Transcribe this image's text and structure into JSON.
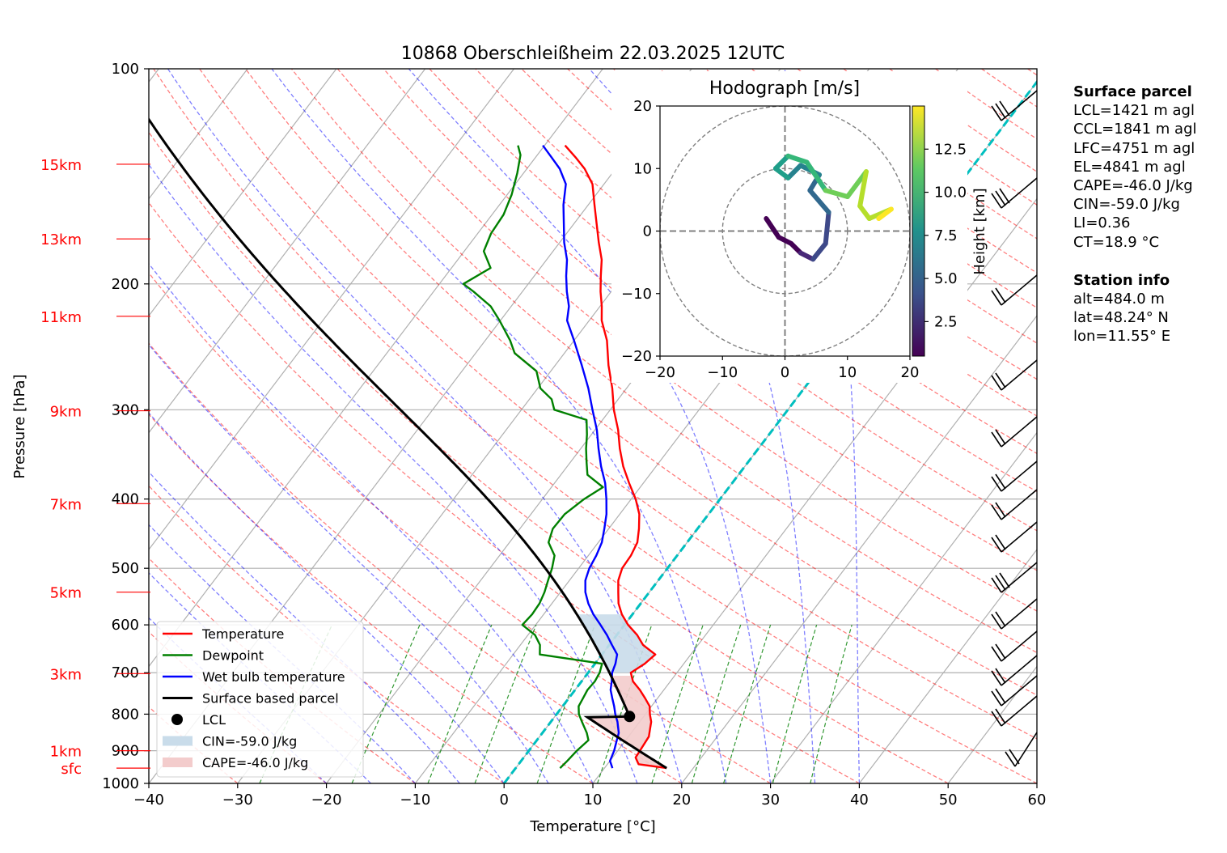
{
  "chart_data": {
    "type": "line",
    "subtype": "skew-T log-p diagram",
    "title": "10868 Oberschleißheim 22.03.2025 12UTC",
    "xlabel": "Temperature [°C]",
    "ylabel": "Pressure [hPa]",
    "xlim": [
      -40,
      60
    ],
    "ylim": [
      1000,
      100
    ],
    "y_scale": "log",
    "x_ticks": [
      -40,
      -30,
      -20,
      -10,
      0,
      10,
      20,
      30,
      40,
      50,
      60
    ],
    "y_ticks": [
      100,
      200,
      300,
      400,
      500,
      600,
      700,
      800,
      900,
      1000
    ],
    "height_labels": [
      {
        "label": "15km",
        "p": 136
      },
      {
        "label": "13km",
        "p": 173
      },
      {
        "label": "11km",
        "p": 222
      },
      {
        "label": "9km",
        "p": 301
      },
      {
        "label": "7km",
        "p": 406
      },
      {
        "label": "5km",
        "p": 540
      },
      {
        "label": "3km",
        "p": 702
      },
      {
        "label": "1km",
        "p": 900
      },
      {
        "label": "sfc",
        "p": 952
      }
    ],
    "grid": true,
    "legend_position": "lower-left",
    "legend": [
      {
        "label": "Temperature",
        "color": "#ff0000",
        "kind": "line"
      },
      {
        "label": "Dewpoint",
        "color": "#008000",
        "kind": "line"
      },
      {
        "label": "Wet bulb temperature",
        "color": "#0000ff",
        "kind": "line"
      },
      {
        "label": "Surface based parcel",
        "color": "#000000",
        "kind": "line"
      },
      {
        "label": "LCL",
        "color": "#000000",
        "kind": "dot"
      },
      {
        "label": "CIN=-59.0 J/kg",
        "color": "#c9dcea",
        "kind": "patch"
      },
      {
        "label": "CAPE=-46.0 J/kg",
        "color": "#f3cccc",
        "kind": "patch"
      }
    ],
    "series": [
      {
        "name": "Temperature",
        "color": "#ff0000",
        "points": [
          [
            952,
            17.0
          ],
          [
            940,
            13.5
          ],
          [
            920,
            12.6
          ],
          [
            900,
            12.5
          ],
          [
            860,
            12.3
          ],
          [
            820,
            11.3
          ],
          [
            800,
            10.5
          ],
          [
            780,
            9.8
          ],
          [
            760,
            8.6
          ],
          [
            740,
            7.3
          ],
          [
            720,
            5.8
          ],
          [
            700,
            4.8
          ],
          [
            680,
            5.6
          ],
          [
            660,
            6.0
          ],
          [
            640,
            3.8
          ],
          [
            620,
            2.3
          ],
          [
            600,
            0.4
          ],
          [
            580,
            -1.2
          ],
          [
            560,
            -2.5
          ],
          [
            540,
            -3.5
          ],
          [
            520,
            -4.5
          ],
          [
            500,
            -5.1
          ],
          [
            480,
            -5.2
          ],
          [
            460,
            -5.6
          ],
          [
            440,
            -6.6
          ],
          [
            420,
            -7.8
          ],
          [
            400,
            -9.5
          ],
          [
            380,
            -11.6
          ],
          [
            360,
            -13.7
          ],
          [
            340,
            -15.6
          ],
          [
            320,
            -17.4
          ],
          [
            300,
            -19.6
          ],
          [
            280,
            -21.6
          ],
          [
            260,
            -24.0
          ],
          [
            240,
            -26.3
          ],
          [
            225,
            -28.6
          ],
          [
            215,
            -29.8
          ],
          [
            205,
            -31.2
          ],
          [
            195,
            -32.5
          ],
          [
            185,
            -33.8
          ],
          [
            175,
            -35.6
          ],
          [
            165,
            -37.4
          ],
          [
            155,
            -39.3
          ],
          [
            145,
            -41.3
          ],
          [
            138,
            -43.5
          ],
          [
            133,
            -45.5
          ],
          [
            128,
            -47.7
          ]
        ]
      },
      {
        "name": "Dewpoint",
        "color": "#008000",
        "points": [
          [
            952,
            5.0
          ],
          [
            930,
            5.2
          ],
          [
            900,
            5.4
          ],
          [
            870,
            5.8
          ],
          [
            850,
            5.0
          ],
          [
            820,
            3.5
          ],
          [
            800,
            2.5
          ],
          [
            780,
            1.8
          ],
          [
            760,
            1.6
          ],
          [
            740,
            1.4
          ],
          [
            720,
            1.5
          ],
          [
            700,
            1.3
          ],
          [
            680,
            0.8
          ],
          [
            660,
            -7.0
          ],
          [
            640,
            -7.8
          ],
          [
            620,
            -9.2
          ],
          [
            600,
            -11.5
          ],
          [
            580,
            -11.3
          ],
          [
            560,
            -11.4
          ],
          [
            540,
            -11.8
          ],
          [
            520,
            -12.4
          ],
          [
            500,
            -13.0
          ],
          [
            480,
            -13.8
          ],
          [
            460,
            -15.6
          ],
          [
            440,
            -16.3
          ],
          [
            420,
            -16.2
          ],
          [
            400,
            -15.3
          ],
          [
            385,
            -14.2
          ],
          [
            370,
            -17.0
          ],
          [
            355,
            -18.2
          ],
          [
            340,
            -19.4
          ],
          [
            325,
            -20.5
          ],
          [
            310,
            -21.8
          ],
          [
            300,
            -26.3
          ],
          [
            290,
            -27.5
          ],
          [
            280,
            -29.7
          ],
          [
            265,
            -31.6
          ],
          [
            250,
            -35.6
          ],
          [
            240,
            -37.2
          ],
          [
            225,
            -40.1
          ],
          [
            215,
            -42.3
          ],
          [
            205,
            -45.5
          ],
          [
            200,
            -47.3
          ],
          [
            190,
            -45.6
          ],
          [
            180,
            -47.8
          ],
          [
            170,
            -48.5
          ],
          [
            160,
            -48.7
          ],
          [
            150,
            -49.5
          ],
          [
            140,
            -50.7
          ],
          [
            132,
            -51.9
          ],
          [
            128,
            -53.0
          ]
        ]
      },
      {
        "name": "Wet bulb temperature",
        "color": "#0000ff",
        "points": [
          [
            952,
            10.9
          ],
          [
            930,
            10.0
          ],
          [
            900,
            9.6
          ],
          [
            870,
            9.0
          ],
          [
            850,
            8.6
          ],
          [
            820,
            7.5
          ],
          [
            800,
            6.6
          ],
          [
            780,
            5.8
          ],
          [
            760,
            4.9
          ],
          [
            740,
            4.0
          ],
          [
            720,
            3.4
          ],
          [
            700,
            2.7
          ],
          [
            680,
            2.3
          ],
          [
            660,
            1.7
          ],
          [
            640,
            0.3
          ],
          [
            620,
            -1.1
          ],
          [
            600,
            -2.7
          ],
          [
            580,
            -4.4
          ],
          [
            560,
            -5.9
          ],
          [
            540,
            -7.2
          ],
          [
            520,
            -8.2
          ],
          [
            500,
            -8.8
          ],
          [
            480,
            -9.1
          ],
          [
            460,
            -9.6
          ],
          [
            440,
            -10.5
          ],
          [
            420,
            -11.5
          ],
          [
            400,
            -12.8
          ],
          [
            380,
            -14.3
          ],
          [
            360,
            -16.2
          ],
          [
            340,
            -18.0
          ],
          [
            320,
            -19.8
          ],
          [
            300,
            -22.0
          ],
          [
            280,
            -24.3
          ],
          [
            260,
            -27.0
          ],
          [
            240,
            -30.0
          ],
          [
            225,
            -32.5
          ],
          [
            215,
            -33.5
          ],
          [
            205,
            -35.0
          ],
          [
            195,
            -36.4
          ],
          [
            185,
            -37.7
          ],
          [
            175,
            -39.5
          ],
          [
            165,
            -41.1
          ],
          [
            155,
            -42.8
          ],
          [
            145,
            -44.3
          ],
          [
            138,
            -46.3
          ],
          [
            133,
            -48.2
          ],
          [
            128,
            -50.2
          ]
        ]
      }
    ],
    "parcel": {
      "name": "Surface based parcel",
      "color": "#000000",
      "surface_p": 952,
      "surface_t": 17.0,
      "lcl_p": 806,
      "lcl_t": 8.4,
      "top_p": 100
    },
    "lcl_marker": {
      "p": 806,
      "t": 8.4
    },
    "hodograph": {
      "title": "Hodograph [m/s]",
      "xlim": [
        -20,
        20
      ],
      "ylim": [
        -20,
        20
      ],
      "ticks": [
        -20,
        -10,
        0,
        10,
        20
      ],
      "rings": [
        10,
        20
      ],
      "colorbar_label": "Height [km]",
      "colorbar_ticks": [
        2.5,
        5.0,
        7.5,
        10.0,
        12.5
      ],
      "colorbar_range": [
        0.5,
        15
      ],
      "colorscale": "viridis",
      "trace": [
        [
          -3,
          2,
          0.5
        ],
        [
          -1,
          -1,
          1.0
        ],
        [
          1,
          -2,
          1.5
        ],
        [
          2.5,
          -3.5,
          2.5
        ],
        [
          4.5,
          -4.5,
          3.5
        ],
        [
          6.5,
          -2,
          4.2
        ],
        [
          7,
          3,
          5.0
        ],
        [
          4,
          6.5,
          5.8
        ],
        [
          5.5,
          9,
          6.5
        ],
        [
          2.5,
          10.5,
          7.2
        ],
        [
          0.5,
          8.5,
          8.0
        ],
        [
          -1.5,
          10,
          8.8
        ],
        [
          0.5,
          12,
          9.5
        ],
        [
          3.5,
          11,
          10.2
        ],
        [
          6.5,
          6.5,
          11.0
        ],
        [
          10,
          5.5,
          11.8
        ],
        [
          13,
          9.5,
          12.5
        ],
        [
          12,
          4,
          13.0
        ],
        [
          13.5,
          2,
          13.5
        ],
        [
          17,
          3.5,
          14.0
        ],
        [
          15,
          2,
          14.5
        ]
      ]
    },
    "side_panel": {
      "surface_parcel": {
        "heading": "Surface parcel",
        "lines": [
          "LCL=1421 m agl",
          "CCL=1841 m agl",
          "LFC=4751 m agl",
          "EL=4841 m agl",
          "CAPE=-46.0 J/kg",
          "CIN=-59.0 J/kg",
          "LI=0.36",
          "CT=18.9 °C"
        ]
      },
      "station_info": {
        "heading": "Station info",
        "lines": [
          "alt=484.0 m",
          "lat=48.24° N",
          "lon=11.55° E"
        ]
      }
    }
  }
}
